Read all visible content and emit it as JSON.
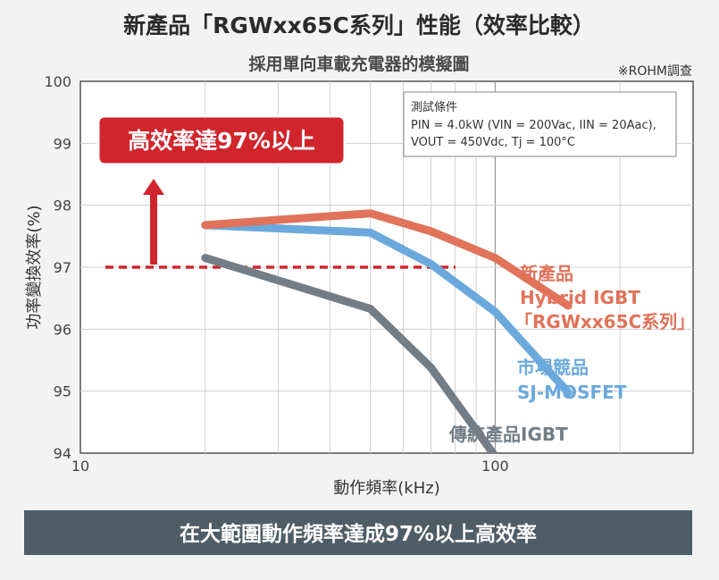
{
  "chart_data": {
    "type": "line",
    "title": "新產品「RGWxx65C系列」性能（效率比較）",
    "subtitle": "採用單向車載充電器的模擬圖",
    "source_note": "※ROHM調查",
    "xlabel": "動作頻率(kHz)",
    "ylabel": "功率變換效率(%)",
    "xscale": "log",
    "xlim": [
      10,
      300
    ],
    "ylim": [
      94,
      100
    ],
    "x_ticks": [
      "10",
      "100"
    ],
    "y_ticks": [
      "94",
      "95",
      "96",
      "97",
      "98",
      "99",
      "100"
    ],
    "grid": true,
    "conditions": {
      "heading": "測試條件",
      "line1": "PIN = 4.0kW (VIN = 200Vac, IIN = 20Aac),",
      "line2": "VOUT = 450Vdc, Tj = 100°C"
    },
    "reference_line": {
      "y": 97,
      "color": "#d0252d"
    },
    "callout": {
      "text": "高效率達97%以上",
      "color": "#d0252d"
    },
    "series": [
      {
        "name": "新產品 Hybrid IGBT「RGWxx65C系列」",
        "label_lines": [
          "新產品",
          "Hybrid IGBT",
          "「RGWxx65C系列」"
        ],
        "color": "#e0735a",
        "x": [
          20,
          50,
          70,
          100,
          150
        ],
        "y": [
          97.68,
          97.87,
          97.58,
          97.15,
          96.38
        ]
      },
      {
        "name": "市場競品 SJ-MOSFET",
        "label_lines": [
          "市場競品",
          "SJ-MOSFET"
        ],
        "color": "#6ba9dc",
        "x": [
          20,
          50,
          70,
          100,
          150
        ],
        "y": [
          97.68,
          97.56,
          97.05,
          96.28,
          94.98
        ]
      },
      {
        "name": "傳統產品IGBT",
        "label_lines": [
          "傳統產品IGBT"
        ],
        "color": "#737d85",
        "x": [
          20,
          50,
          70,
          100
        ],
        "y": [
          97.15,
          96.33,
          95.38,
          93.95
        ]
      }
    ]
  },
  "footer_banner": "在大範圍動作頻率達成97%以上高效率"
}
